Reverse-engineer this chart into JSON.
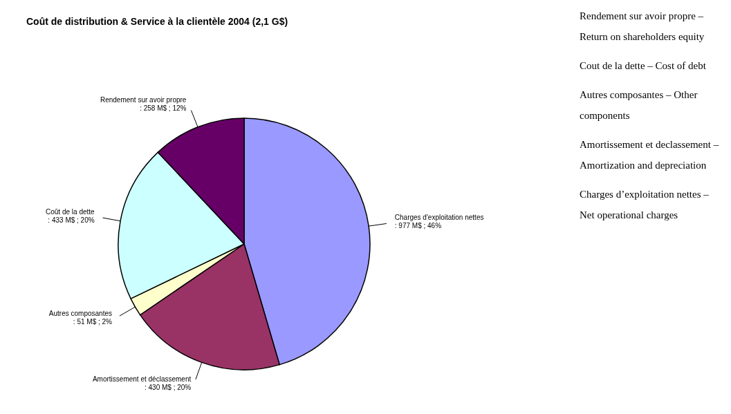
{
  "chart_data": {
    "type": "pie",
    "title": "Coût de distribution & Service à la clientèle 2004 (2,1 G$)",
    "categories": [
      "Charges d'exploitation nettes",
      "Amortissement et déclassement",
      "Autres composantes",
      "Coût de la dette",
      "Rendement sur avoir propre"
    ],
    "values": [
      977,
      430,
      51,
      433,
      258
    ],
    "value_labels": [
      ": 977 M$ ; 46%",
      ": 430 M$ ; 20%",
      ": 51 M$ ; 2%",
      ": 433 M$ ; 20%",
      ": 258 M$ ; 12%"
    ],
    "colors": [
      "#9999ff",
      "#993366",
      "#ffffcc",
      "#ccffff",
      "#660066"
    ],
    "annotations": [
      "Rendement sur avoir propre – Return on shareholders equity",
      "Cout de la dette – Cost of debt",
      "Autres composantes – Other components",
      "Amortissement et declassement – Amortization and depreciation",
      "Charges d’exploitation nettes – Net operational charges"
    ]
  }
}
